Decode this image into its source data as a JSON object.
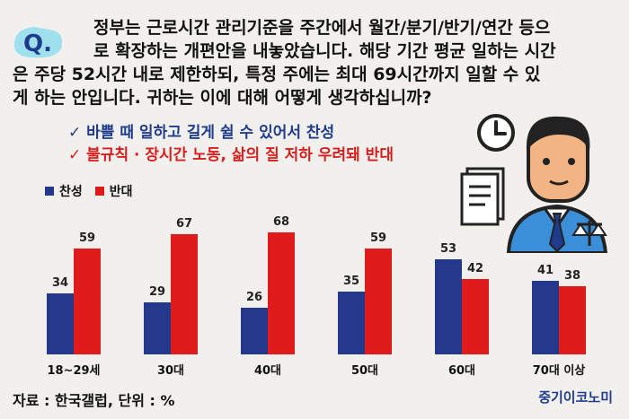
{
  "question": {
    "badge": "Q.",
    "line1": "정부는 근로시간 관리기준을 주간에서 월간/분기/반기/연간 등으",
    "line2": "로 확장하는 개편안을 내놓았습니다.  해당 기간 평균 일하는 시간",
    "line3": "은 주당 52시간 내로 제한하되, 특정 주에는 최대 69시간까지 일할 수 있",
    "line4": "게 하는 안입니다. 귀하는 이에 대해 어떻게 생각하십니까?"
  },
  "options": [
    {
      "check": "✓",
      "text": "바쁠 때 일하고 길게 쉴 수 있어서 찬성"
    },
    {
      "check": "✓",
      "text": "불규칙 · 장시간 노동, 삶의 질 저하 우려돼 반대"
    }
  ],
  "colors": {
    "support": "#24398c",
    "oppose": "#e01b1b"
  },
  "chart_data": {
    "type": "bar",
    "categories": [
      "18~29세",
      "30대",
      "40대",
      "50대",
      "60대",
      "70대 이상"
    ],
    "series": [
      {
        "name": "찬성",
        "values": [
          34,
          29,
          26,
          35,
          53,
          41
        ]
      },
      {
        "name": "반대",
        "values": [
          59,
          67,
          68,
          59,
          42,
          38
        ]
      }
    ],
    "ylim": [
      0,
      80
    ],
    "legend": "top-left",
    "grid": false
  },
  "footer": {
    "source": "자료 : 한국갤럽, 단위 : %",
    "brand": "중기이코노미"
  }
}
